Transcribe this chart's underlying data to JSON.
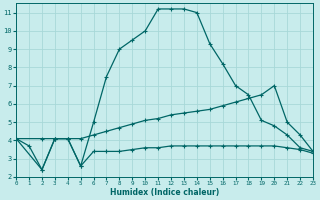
{
  "xlabel": "Humidex (Indice chaleur)",
  "bg_color": "#c8ecec",
  "grid_color": "#a8d8d8",
  "line_color": "#006666",
  "xlim": [
    0,
    23
  ],
  "ylim": [
    2,
    11.5
  ],
  "yticks": [
    2,
    3,
    4,
    5,
    6,
    7,
    8,
    9,
    10,
    11
  ],
  "xticks": [
    0,
    1,
    2,
    3,
    4,
    5,
    6,
    7,
    8,
    9,
    10,
    11,
    12,
    13,
    14,
    15,
    16,
    17,
    18,
    19,
    20,
    21,
    22,
    23
  ],
  "curve1_x": [
    0,
    1,
    2,
    3,
    4,
    5,
    6,
    7,
    8,
    9,
    10,
    11,
    12,
    13,
    14,
    15,
    16,
    17,
    18,
    19,
    20,
    21,
    22,
    23
  ],
  "curve1_y": [
    4.1,
    3.7,
    2.4,
    4.1,
    4.1,
    2.6,
    5.0,
    7.5,
    9.0,
    9.5,
    10.0,
    11.2,
    11.2,
    11.2,
    11.0,
    9.3,
    8.2,
    7.0,
    6.5,
    5.1,
    4.8,
    4.3,
    3.6,
    3.4
  ],
  "curve2_x": [
    0,
    2,
    3,
    4,
    5,
    6,
    7,
    8,
    9,
    10,
    11,
    12,
    13,
    14,
    15,
    16,
    17,
    18,
    19,
    20,
    21,
    22,
    23
  ],
  "curve2_y": [
    4.1,
    4.1,
    4.1,
    4.1,
    4.1,
    4.3,
    4.5,
    4.7,
    4.9,
    5.1,
    5.2,
    5.4,
    5.5,
    5.6,
    5.7,
    5.9,
    6.1,
    6.3,
    6.5,
    7.0,
    5.0,
    4.3,
    3.4
  ],
  "curve3_x": [
    0,
    2,
    3,
    4,
    5,
    6,
    7,
    8,
    9,
    10,
    11,
    12,
    13,
    14,
    15,
    16,
    17,
    18,
    19,
    20,
    21,
    22,
    23
  ],
  "curve3_y": [
    4.1,
    2.4,
    4.1,
    4.1,
    2.6,
    3.4,
    3.4,
    3.4,
    3.5,
    3.6,
    3.6,
    3.7,
    3.7,
    3.7,
    3.7,
    3.7,
    3.7,
    3.7,
    3.7,
    3.7,
    3.6,
    3.5,
    3.3
  ]
}
